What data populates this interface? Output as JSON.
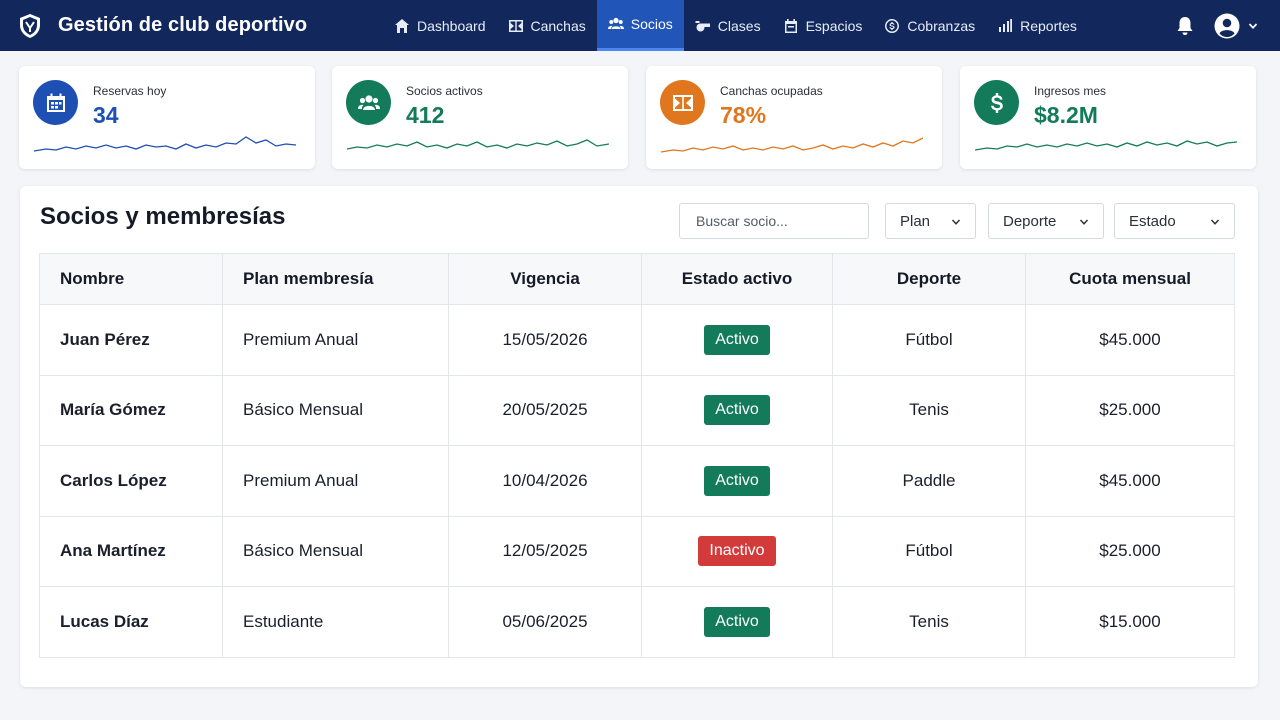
{
  "app": {
    "title": "Gestión de club deportivo"
  },
  "nav": [
    {
      "label": "Dashboard",
      "icon": "home-icon"
    },
    {
      "label": "Canchas",
      "icon": "court-icon"
    },
    {
      "label": "Socios",
      "icon": "users-icon",
      "active": true
    },
    {
      "label": "Clases",
      "icon": "whistle-icon"
    },
    {
      "label": "Espacios",
      "icon": "calendar-icon"
    },
    {
      "label": "Cobranzas",
      "icon": "dollar-circle-icon"
    },
    {
      "label": "Reportes",
      "icon": "bar-chart-icon"
    }
  ],
  "kpis": [
    {
      "label": "Reservas hoy",
      "value": "34",
      "color": "#1e4fb3",
      "icon": "calendar-icon"
    },
    {
      "label": "Socios activos",
      "value": "412",
      "color": "#137b5a",
      "icon": "users-icon"
    },
    {
      "label": "Canchas ocupadas",
      "value": "78%",
      "color": "#e0761d",
      "icon": "court-icon"
    },
    {
      "label": "Ingresos mes",
      "value": "$8.2M",
      "color": "#137b5a",
      "icon": "dollar-icon"
    }
  ],
  "panel": {
    "title": "Socios y membresías",
    "search_placeholder": "Buscar socio...",
    "filters": [
      "Plan",
      "Deporte",
      "Estado"
    ]
  },
  "table": {
    "columns": [
      "Nombre",
      "Plan membresía",
      "Vigencia",
      "Estado activo",
      "Deporte",
      "Cuota mensual"
    ],
    "rows": [
      [
        "Juan Pérez",
        "Premium Anual",
        "15/05/2026",
        "Activo",
        "Fútbol",
        "$45.000"
      ],
      [
        "María Gómez",
        "Básico Mensual",
        "20/05/2025",
        "Activo",
        "Tenis",
        "$25.000"
      ],
      [
        "Carlos López",
        "Premium Anual",
        "10/04/2026",
        "Activo",
        "Paddle",
        "$45.000"
      ],
      [
        "Ana Martínez",
        "Básico Mensual",
        "12/05/2025",
        "Inactivo",
        "Fútbol",
        "$25.000"
      ],
      [
        "Lucas Díaz",
        "Estudiante",
        "05/06/2025",
        "Activo",
        "Tenis",
        "$15.000"
      ]
    ]
  },
  "colors": {
    "topbar": "#12285c",
    "active_tab": "#2255b8",
    "active": "#137b5a",
    "inactive": "#d33a3a"
  }
}
